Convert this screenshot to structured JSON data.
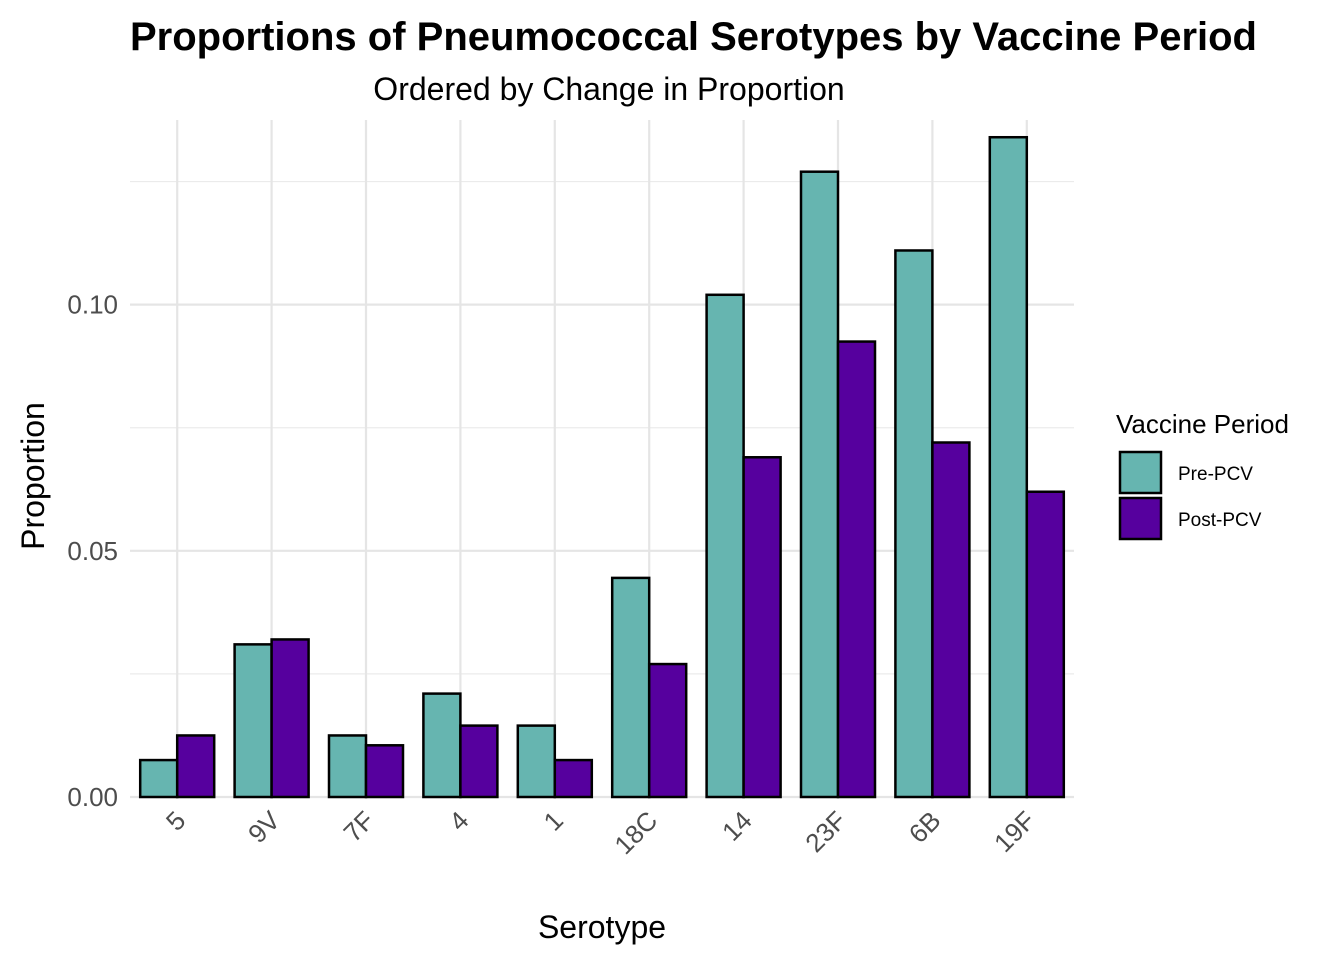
{
  "chart_data": {
    "type": "bar",
    "title": "Proportions of Pneumococcal Serotypes by Vaccine Period",
    "subtitle": "Ordered by Change in Proportion",
    "xlabel": "Serotype",
    "ylabel": "Proportion",
    "categories": [
      "5",
      "9V",
      "7F",
      "4",
      "1",
      "18C",
      "14",
      "23F",
      "6B",
      "19F"
    ],
    "series": [
      {
        "name": "Pre-PCV",
        "color": "#66b5b0",
        "values": [
          0.0075,
          0.031,
          0.0125,
          0.021,
          0.0145,
          0.0445,
          0.102,
          0.127,
          0.111,
          0.134
        ]
      },
      {
        "name": "Post-PCV",
        "color": "#56009e",
        "values": [
          0.0125,
          0.032,
          0.0105,
          0.0145,
          0.0075,
          0.027,
          0.069,
          0.0925,
          0.072,
          0.062
        ]
      }
    ],
    "ylim": [
      0,
      0.1375
    ],
    "yticks": [
      "0.00",
      "0.05",
      "0.10"
    ],
    "ytick_values": [
      0,
      0.05,
      0.1
    ],
    "grid": true,
    "legend": {
      "title": "Vaccine Period",
      "position": "right"
    }
  }
}
